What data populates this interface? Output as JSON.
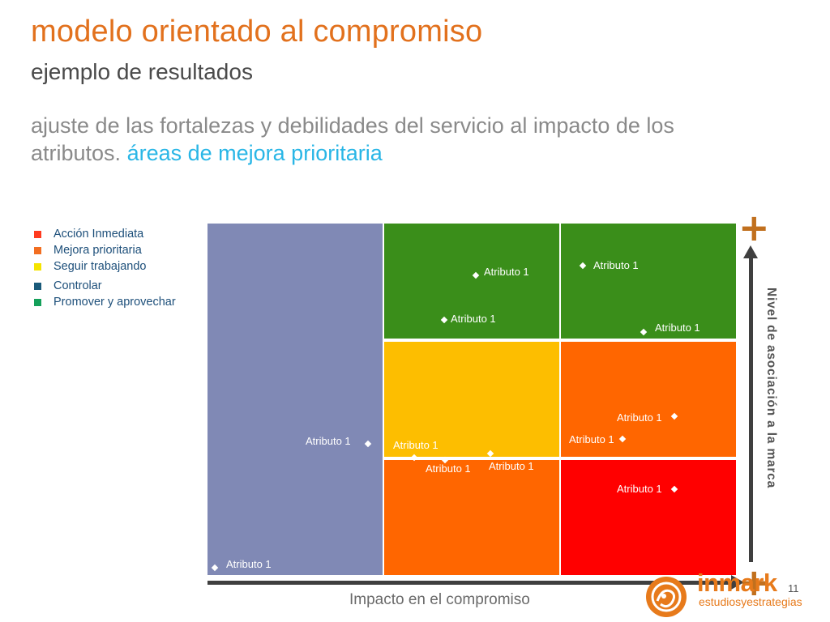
{
  "header": {
    "title": "modelo orientado al compromiso",
    "subtitle": "ejemplo de resultados",
    "description_main": "ajuste de las fortalezas y debilidades del servicio al impacto de los atributos.",
    "description_highlight": "áreas de mejora prioritaria"
  },
  "legend": [
    {
      "label": "Acción Inmediata",
      "color": "#ff3b1f"
    },
    {
      "label": "Mejora prioritaria",
      "color": "#f26e21"
    },
    {
      "label": "Seguir trabajando",
      "color": "#f5e400"
    },
    {
      "label": "Controlar",
      "color": "#1a5a7a"
    },
    {
      "label": "Promover y aprovechar",
      "color": "#15a05a"
    }
  ],
  "matrix": {
    "colors": {
      "controlar": "#8089b5",
      "promover": "#3a8e1a",
      "seguir": "#fdbe00",
      "mejora": "#ff6600",
      "accion": "#ff0000"
    },
    "attributes": [
      {
        "label": "Atributo 1"
      },
      {
        "label": "Atributo 1"
      },
      {
        "label": "Atributo 1"
      },
      {
        "label": "Atributo 1"
      },
      {
        "label": "Atributo 1"
      },
      {
        "label": "Atributo 1"
      },
      {
        "label": "Atributo 1"
      },
      {
        "label": "Atributo 1"
      },
      {
        "label": "Atributo 1"
      },
      {
        "label": "Atributo 1"
      },
      {
        "label": "Atributo 1"
      },
      {
        "label": "Atributo 1"
      }
    ]
  },
  "axes": {
    "y_label": "Nivel de asociación a la marca",
    "x_label": "Impacto en el compromiso",
    "plus_symbol": "+"
  },
  "footer": {
    "page_number": "11",
    "logo_name": "inmark",
    "logo_sub": "estudiosyestrategias"
  }
}
